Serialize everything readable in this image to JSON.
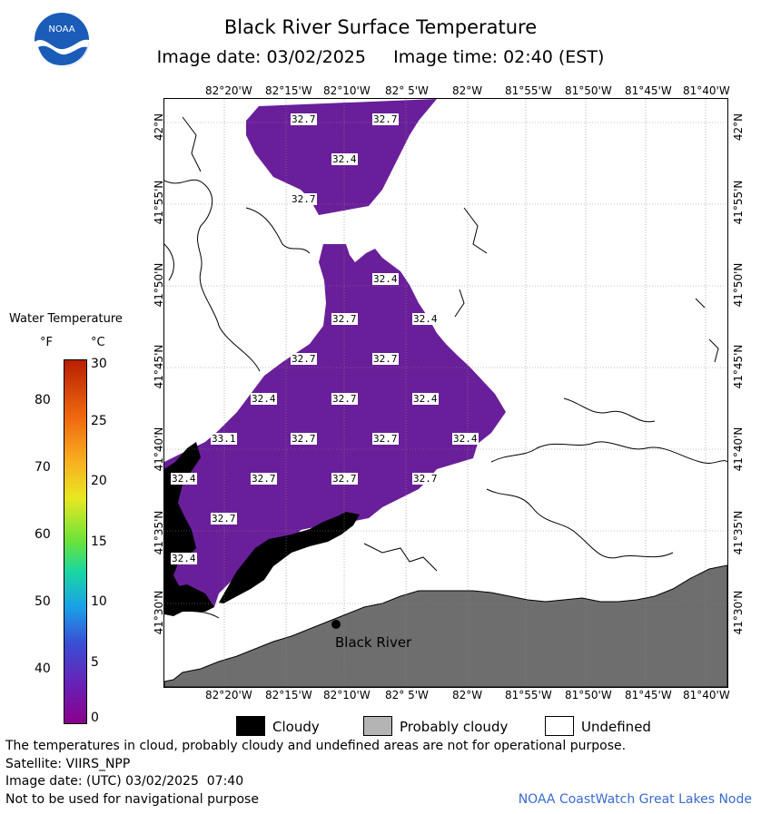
{
  "header": {
    "title": "Black River Surface Temperature",
    "subtitle_date": "Image date: 03/02/2025",
    "subtitle_time": "Image time: 02:40 (EST)",
    "logo_text": "NOAA"
  },
  "map": {
    "lon_labels": [
      "82°20'W",
      "82°15'W",
      "82°10'W",
      "82° 5'W",
      "82°W",
      "81°55'W",
      "81°50'W",
      "81°45'W",
      "81°40'W"
    ],
    "lat_labels": [
      "42°N",
      "41°55'N",
      "41°50'N",
      "41°45'N",
      "41°40'N",
      "41°35'N",
      "41°30'N"
    ],
    "place_label": "Black River",
    "temperatures": [
      "32.7",
      "32.7",
      "32.4",
      "32.7",
      "32.4",
      "32.7",
      "32.4",
      "32.7",
      "32.7",
      "32.4",
      "32.7",
      "32.4",
      "33.1",
      "32.7",
      "32.7",
      "32.4",
      "32.4",
      "32.7",
      "32.7",
      "32.7",
      "32.7",
      "32.4"
    ]
  },
  "colorbar": {
    "title": "Water Temperature",
    "unit_f": "°F",
    "unit_c": "°C",
    "f_ticks": [
      "80",
      "70",
      "60",
      "50",
      "40"
    ],
    "c_ticks": [
      "30",
      "25",
      "20",
      "15",
      "10",
      "5",
      "0"
    ]
  },
  "legend": {
    "cloudy": "Cloudy",
    "probably_cloudy": "Probably cloudy",
    "undefined": "Undefined",
    "colors": {
      "cloudy": "#000000",
      "probably_cloudy": "#b4b4b4",
      "undefined": "#ffffff",
      "water": "#6a1f9a",
      "land": "#6e6e6e"
    }
  },
  "footer": {
    "disclaimer": "The temperatures in cloud, probably cloudy and undefined areas are not for operational purpose.",
    "satellite": "Satellite: VIIRS_NPP",
    "utc_date": "Image date: (UTC) 03/02/2025  07:40",
    "nav_warning": "Not to be used for navigational purpose",
    "credit": "NOAA CoastWatch Great Lakes Node"
  }
}
